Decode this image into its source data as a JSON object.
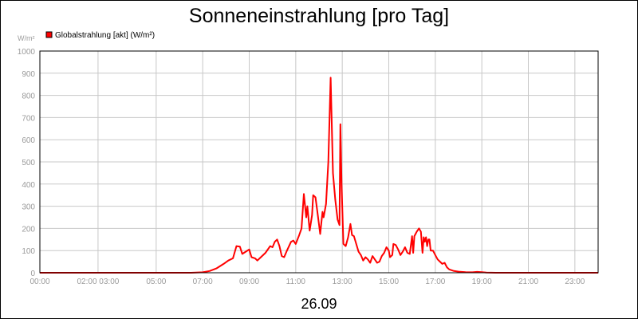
{
  "chart_data": {
    "type": "line",
    "title": "Sonneneinstrahlung [pro Tag]",
    "ylabel": "W/m²",
    "xlabel": "26.09",
    "ylim": [
      0,
      1000
    ],
    "xlim_hours": [
      0,
      24
    ],
    "y_ticks": [
      "0",
      "100",
      "200",
      "300",
      "400",
      "500",
      "600",
      "700",
      "800",
      "900",
      "1000"
    ],
    "x_ticks": [
      {
        "h": 0,
        "label": "00:00"
      },
      {
        "h": 2.5,
        "label": "02:00 03:00"
      },
      {
        "h": 5,
        "label": "05:00"
      },
      {
        "h": 7,
        "label": "07:00"
      },
      {
        "h": 9,
        "label": "09:00"
      },
      {
        "h": 11,
        "label": "11:00"
      },
      {
        "h": 13,
        "label": "13:00"
      },
      {
        "h": 15,
        "label": "15:00"
      },
      {
        "h": 17,
        "label": "17:00"
      },
      {
        "h": 19,
        "label": "19:00"
      },
      {
        "h": 21,
        "label": "21:00"
      },
      {
        "h": 23,
        "label": "23:00"
      }
    ],
    "grid": true,
    "legend_position": "top-left",
    "series": [
      {
        "name": "Globalstrahlung [akt] (W/m²)",
        "color": "#ff0000",
        "points": [
          [
            0,
            0
          ],
          [
            6.5,
            0
          ],
          [
            7.0,
            2
          ],
          [
            7.3,
            8
          ],
          [
            7.6,
            20
          ],
          [
            7.9,
            40
          ],
          [
            8.1,
            55
          ],
          [
            8.3,
            65
          ],
          [
            8.45,
            120
          ],
          [
            8.6,
            118
          ],
          [
            8.7,
            85
          ],
          [
            8.85,
            95
          ],
          [
            9.0,
            105
          ],
          [
            9.1,
            70
          ],
          [
            9.25,
            65
          ],
          [
            9.35,
            55
          ],
          [
            9.5,
            70
          ],
          [
            9.7,
            90
          ],
          [
            9.9,
            120
          ],
          [
            10.0,
            115
          ],
          [
            10.1,
            140
          ],
          [
            10.2,
            150
          ],
          [
            10.3,
            120
          ],
          [
            10.4,
            75
          ],
          [
            10.5,
            70
          ],
          [
            10.6,
            95
          ],
          [
            10.8,
            140
          ],
          [
            10.9,
            145
          ],
          [
            11.0,
            130
          ],
          [
            11.15,
            170
          ],
          [
            11.25,
            200
          ],
          [
            11.35,
            355
          ],
          [
            11.45,
            250
          ],
          [
            11.5,
            300
          ],
          [
            11.6,
            190
          ],
          [
            11.7,
            260
          ],
          [
            11.75,
            350
          ],
          [
            11.85,
            340
          ],
          [
            11.95,
            260
          ],
          [
            12.05,
            175
          ],
          [
            12.15,
            275
          ],
          [
            12.2,
            250
          ],
          [
            12.3,
            310
          ],
          [
            12.4,
            500
          ],
          [
            12.5,
            880
          ],
          [
            12.6,
            450
          ],
          [
            12.7,
            330
          ],
          [
            12.8,
            240
          ],
          [
            12.88,
            215
          ],
          [
            12.92,
            670
          ],
          [
            12.97,
            400
          ],
          [
            13.05,
            130
          ],
          [
            13.15,
            120
          ],
          [
            13.25,
            160
          ],
          [
            13.35,
            220
          ],
          [
            13.42,
            170
          ],
          [
            13.5,
            165
          ],
          [
            13.6,
            130
          ],
          [
            13.7,
            95
          ],
          [
            13.8,
            80
          ],
          [
            13.9,
            55
          ],
          [
            14.0,
            70
          ],
          [
            14.1,
            60
          ],
          [
            14.2,
            45
          ],
          [
            14.3,
            75
          ],
          [
            14.4,
            60
          ],
          [
            14.5,
            45
          ],
          [
            14.6,
            50
          ],
          [
            14.7,
            75
          ],
          [
            14.8,
            90
          ],
          [
            14.9,
            115
          ],
          [
            15.0,
            100
          ],
          [
            15.05,
            70
          ],
          [
            15.15,
            80
          ],
          [
            15.2,
            130
          ],
          [
            15.3,
            125
          ],
          [
            15.4,
            105
          ],
          [
            15.5,
            80
          ],
          [
            15.6,
            95
          ],
          [
            15.7,
            115
          ],
          [
            15.8,
            90
          ],
          [
            15.9,
            85
          ],
          [
            16.0,
            165
          ],
          [
            16.05,
            90
          ],
          [
            16.1,
            165
          ],
          [
            16.2,
            185
          ],
          [
            16.3,
            200
          ],
          [
            16.38,
            185
          ],
          [
            16.45,
            90
          ],
          [
            16.5,
            160
          ],
          [
            16.55,
            140
          ],
          [
            16.6,
            160
          ],
          [
            16.65,
            120
          ],
          [
            16.7,
            150
          ],
          [
            16.75,
            150
          ],
          [
            16.8,
            100
          ],
          [
            16.9,
            100
          ],
          [
            17.0,
            80
          ],
          [
            17.1,
            60
          ],
          [
            17.2,
            50
          ],
          [
            17.3,
            40
          ],
          [
            17.4,
            45
          ],
          [
            17.5,
            25
          ],
          [
            17.6,
            15
          ],
          [
            17.8,
            8
          ],
          [
            18.0,
            5
          ],
          [
            18.3,
            3
          ],
          [
            18.6,
            2
          ],
          [
            18.8,
            4
          ],
          [
            19.0,
            3
          ],
          [
            19.2,
            1
          ],
          [
            19.6,
            0
          ],
          [
            24,
            0
          ]
        ]
      }
    ]
  }
}
